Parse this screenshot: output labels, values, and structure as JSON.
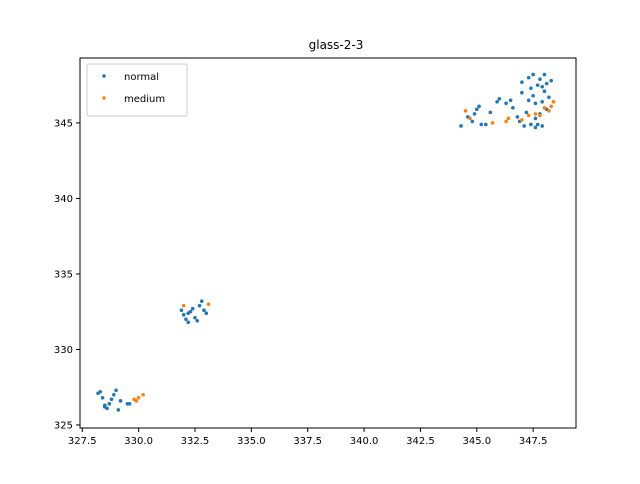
{
  "chart_data": {
    "type": "scatter",
    "title": "glass-2-3",
    "xlabel": "",
    "ylabel": "",
    "xlim": [
      327.4,
      349.4
    ],
    "ylim": [
      324.8,
      349.3
    ],
    "xticks": [
      327.5,
      330.0,
      332.5,
      335.0,
      337.5,
      340.0,
      342.5,
      345.0,
      347.5
    ],
    "xtick_labels": [
      "327.5",
      "330.0",
      "332.5",
      "335.0",
      "337.5",
      "340.0",
      "342.5",
      "345.0",
      "347.5"
    ],
    "yticks": [
      325,
      330,
      335,
      340,
      345
    ],
    "ytick_labels": [
      "325",
      "330",
      "335",
      "340",
      "345"
    ],
    "grid": false,
    "legend_position": "upper-left",
    "series": [
      {
        "name": "normal",
        "color": "#1f77b4",
        "points": [
          [
            328.2,
            327.1
          ],
          [
            328.3,
            327.2
          ],
          [
            328.4,
            326.8
          ],
          [
            328.5,
            326.3
          ],
          [
            328.6,
            326.1
          ],
          [
            328.7,
            326.4
          ],
          [
            328.8,
            326.7
          ],
          [
            328.9,
            327.0
          ],
          [
            329.0,
            327.3
          ],
          [
            329.1,
            326.0
          ],
          [
            329.2,
            326.6
          ],
          [
            329.5,
            326.4
          ],
          [
            329.6,
            326.4
          ],
          [
            328.5,
            326.2
          ],
          [
            331.9,
            332.6
          ],
          [
            332.0,
            332.3
          ],
          [
            332.1,
            332.0
          ],
          [
            332.2,
            331.8
          ],
          [
            332.3,
            332.5
          ],
          [
            332.4,
            332.7
          ],
          [
            332.5,
            332.1
          ],
          [
            332.6,
            331.9
          ],
          [
            332.7,
            332.9
          ],
          [
            332.8,
            333.2
          ],
          [
            332.9,
            332.6
          ],
          [
            333.0,
            332.4
          ],
          [
            332.2,
            332.4
          ],
          [
            344.3,
            344.8
          ],
          [
            344.6,
            345.4
          ],
          [
            344.8,
            345.1
          ],
          [
            344.9,
            345.6
          ],
          [
            345.0,
            345.9
          ],
          [
            345.1,
            346.1
          ],
          [
            345.2,
            344.9
          ],
          [
            345.4,
            344.9
          ],
          [
            345.6,
            345.7
          ],
          [
            345.9,
            346.4
          ],
          [
            346.0,
            346.6
          ],
          [
            346.3,
            346.3
          ],
          [
            346.5,
            346.5
          ],
          [
            346.6,
            346.0
          ],
          [
            346.8,
            345.4
          ],
          [
            346.9,
            345.1
          ],
          [
            347.0,
            347.0
          ],
          [
            347.0,
            347.7
          ],
          [
            347.1,
            344.8
          ],
          [
            347.2,
            345.7
          ],
          [
            347.3,
            346.5
          ],
          [
            347.3,
            348.0
          ],
          [
            347.4,
            344.9
          ],
          [
            347.4,
            347.3
          ],
          [
            347.5,
            346.8
          ],
          [
            347.5,
            348.2
          ],
          [
            347.6,
            345.3
          ],
          [
            347.6,
            346.3
          ],
          [
            347.7,
            344.9
          ],
          [
            347.7,
            347.5
          ],
          [
            347.8,
            345.6
          ],
          [
            347.8,
            347.9
          ],
          [
            347.9,
            344.8
          ],
          [
            347.9,
            346.4
          ],
          [
            348.0,
            347.1
          ],
          [
            348.0,
            348.2
          ],
          [
            348.1,
            345.9
          ],
          [
            348.1,
            347.6
          ],
          [
            348.2,
            346.7
          ],
          [
            348.3,
            347.8
          ],
          [
            347.6,
            344.7
          ],
          [
            347.9,
            347.4
          ]
        ]
      },
      {
        "name": "medium",
        "color": "#ff7f0e",
        "points": [
          [
            329.8,
            326.7
          ],
          [
            329.9,
            326.6
          ],
          [
            330.0,
            326.8
          ],
          [
            330.2,
            327.0
          ],
          [
            332.0,
            332.9
          ],
          [
            333.1,
            333.0
          ],
          [
            344.5,
            345.8
          ],
          [
            344.7,
            345.3
          ],
          [
            345.7,
            345.0
          ],
          [
            346.3,
            345.1
          ],
          [
            346.4,
            345.3
          ],
          [
            347.0,
            345.2
          ],
          [
            347.3,
            345.5
          ],
          [
            347.6,
            345.6
          ],
          [
            347.8,
            345.5
          ],
          [
            348.0,
            346.0
          ],
          [
            348.2,
            345.8
          ],
          [
            348.3,
            346.1
          ],
          [
            348.4,
            346.4
          ]
        ]
      }
    ]
  }
}
